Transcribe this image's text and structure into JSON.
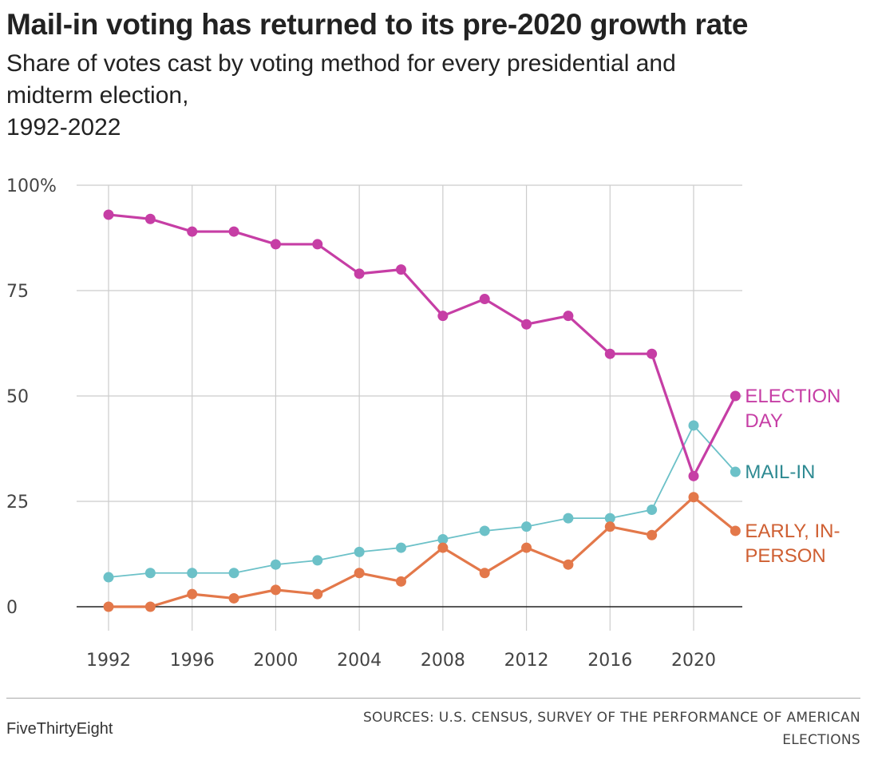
{
  "header": {
    "title": "Mail-in voting has returned to its pre-2020 growth rate",
    "subtitle_lines": [
      "Share of votes cast by voting method for every presidential and",
      "midterm election,",
      "1992-2022"
    ]
  },
  "footer": {
    "brand": "FiveThirtyEight",
    "source_lines": [
      "SOURCES: U.S. CENSUS, SURVEY OF THE PERFORMANCE OF AMERICAN",
      "ELECTIONS"
    ]
  },
  "chart_data": {
    "type": "line",
    "title": "Mail-in voting has returned to its pre-2020 growth rate",
    "subtitle": "Share of votes cast by voting method for every presidential and midterm election, 1992-2022",
    "x": [
      1992,
      1994,
      1996,
      1998,
      2000,
      2002,
      2004,
      2006,
      2008,
      2010,
      2012,
      2014,
      2016,
      2018,
      2020,
      2022
    ],
    "xlim": [
      1992,
      2022
    ],
    "ylim": [
      0,
      100
    ],
    "x_ticks": [
      1992,
      1996,
      2000,
      2004,
      2008,
      2012,
      2016,
      2020
    ],
    "x_tick_labels": [
      "1992",
      "1996",
      "2000",
      "2004",
      "2008",
      "2012",
      "2016",
      "2020"
    ],
    "y_ticks": [
      0,
      25,
      50,
      75,
      100
    ],
    "y_tick_labels": [
      "0",
      "25",
      "50",
      "75",
      "100%"
    ],
    "grid": true,
    "legend": "direct labels at line ends (right)",
    "series": [
      {
        "name": "ELECTION DAY",
        "label_lines": [
          "ELECTION",
          "DAY"
        ],
        "color": "#c63ea5",
        "label_color": "#c63ea5",
        "values": [
          93,
          92,
          89,
          89,
          86,
          86,
          79,
          80,
          69,
          73,
          67,
          69,
          60,
          60,
          31,
          50
        ]
      },
      {
        "name": "MAIL-IN",
        "label_lines": [
          "MAIL-IN"
        ],
        "color": "#6cc1c8",
        "label_color": "#2e8a92",
        "values": [
          7,
          8,
          8,
          8,
          10,
          11,
          13,
          14,
          16,
          18,
          19,
          21,
          21,
          23,
          43,
          32
        ]
      },
      {
        "name": "EARLY, IN-PERSON",
        "label_lines": [
          "EARLY, IN-",
          "PERSON"
        ],
        "color": "#e3784a",
        "label_color": "#cf5f32",
        "values": [
          0,
          0,
          3,
          2,
          4,
          3,
          8,
          6,
          14,
          8,
          14,
          10,
          19,
          17,
          26,
          18
        ]
      }
    ]
  }
}
